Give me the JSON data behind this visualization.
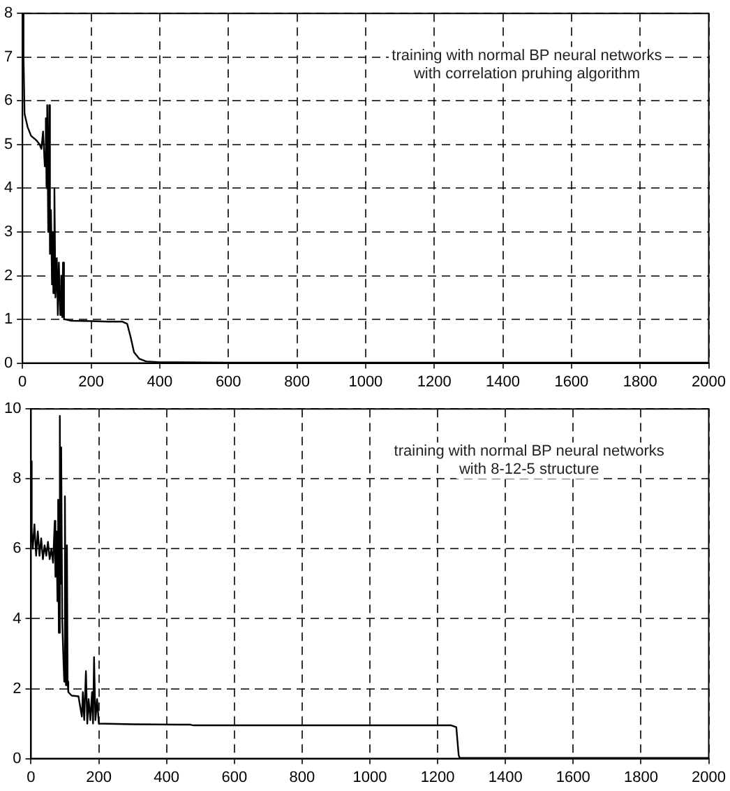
{
  "chart_data": [
    {
      "type": "line",
      "annotations": [
        "training with normal BP neural networks",
        "with correlation pruhing algorithm"
      ],
      "grid": true,
      "xlim": [
        0,
        2000
      ],
      "xticks": [
        0,
        200,
        400,
        600,
        800,
        1000,
        1200,
        1400,
        1600,
        1800,
        2000
      ],
      "ylim": [
        0,
        8
      ],
      "yticks": [
        0,
        1,
        2,
        3,
        4,
        5,
        6,
        7,
        8
      ],
      "x": [
        0,
        3,
        6,
        15,
        25,
        40,
        50,
        55,
        60,
        65,
        68,
        70,
        72,
        75,
        78,
        80,
        83,
        86,
        88,
        90,
        93,
        96,
        100,
        103,
        106,
        110,
        113,
        116,
        118,
        121,
        125,
        140,
        200,
        250,
        290,
        305,
        315,
        325,
        340,
        360,
        400,
        600,
        2000
      ],
      "series": [
        {
          "color": "#000000",
          "values": [
            8,
            7,
            5.7,
            5.4,
            5.2,
            5.1,
            5.0,
            4.9,
            5.3,
            4.5,
            5.6,
            4.0,
            5.9,
            3.0,
            5.9,
            2.5,
            3.5,
            1.8,
            3.0,
            1.6,
            4.0,
            1.5,
            2.4,
            1.1,
            2.3,
            1.1,
            2.0,
            1.05,
            2.3,
            1.0,
            1.0,
            0.97,
            0.96,
            0.95,
            0.95,
            0.9,
            0.6,
            0.25,
            0.1,
            0.04,
            0.02,
            0.01,
            0.01
          ]
        }
      ]
    },
    {
      "type": "line",
      "annotations": [
        "training with normal BP neural networks",
        "with 8-12-5 structure"
      ],
      "grid": true,
      "xlim": [
        0,
        2000
      ],
      "xticks": [
        0,
        200,
        400,
        600,
        800,
        1000,
        1200,
        1400,
        1600,
        1800,
        2000
      ],
      "ylim": [
        0,
        10
      ],
      "yticks": [
        0,
        2,
        4,
        6,
        8,
        10
      ],
      "x": [
        0,
        2,
        5,
        10,
        15,
        20,
        25,
        30,
        35,
        40,
        45,
        50,
        55,
        60,
        65,
        70,
        72,
        75,
        78,
        80,
        82,
        85,
        87,
        89,
        92,
        95,
        98,
        100,
        103,
        106,
        108,
        110,
        120,
        140,
        150,
        153,
        157,
        162,
        166,
        170,
        175,
        180,
        183,
        186,
        190,
        195,
        200,
        300,
        470,
        480,
        1240,
        1255,
        1262,
        1265,
        2000
      ],
      "series": [
        {
          "color": "#000000",
          "values": [
            8.5,
            6.5,
            6.0,
            6.7,
            5.8,
            6.5,
            5.8,
            6.3,
            5.7,
            6.1,
            5.8,
            6.2,
            5.7,
            6.0,
            5.6,
            6.8,
            5.2,
            6.5,
            4.5,
            7.4,
            3.6,
            9.8,
            5,
            8.9,
            4,
            3,
            2.2,
            7.5,
            2.1,
            6.1,
            2.2,
            1.9,
            1.8,
            1.78,
            1.2,
            1.9,
            1.1,
            2.5,
            1.0,
            1.7,
            1.1,
            1.9,
            1.0,
            2.9,
            1.1,
            1.7,
            1.0,
            0.98,
            0.97,
            0.95,
            0.95,
            0.9,
            0.1,
            0.02,
            0.02
          ]
        }
      ]
    }
  ]
}
